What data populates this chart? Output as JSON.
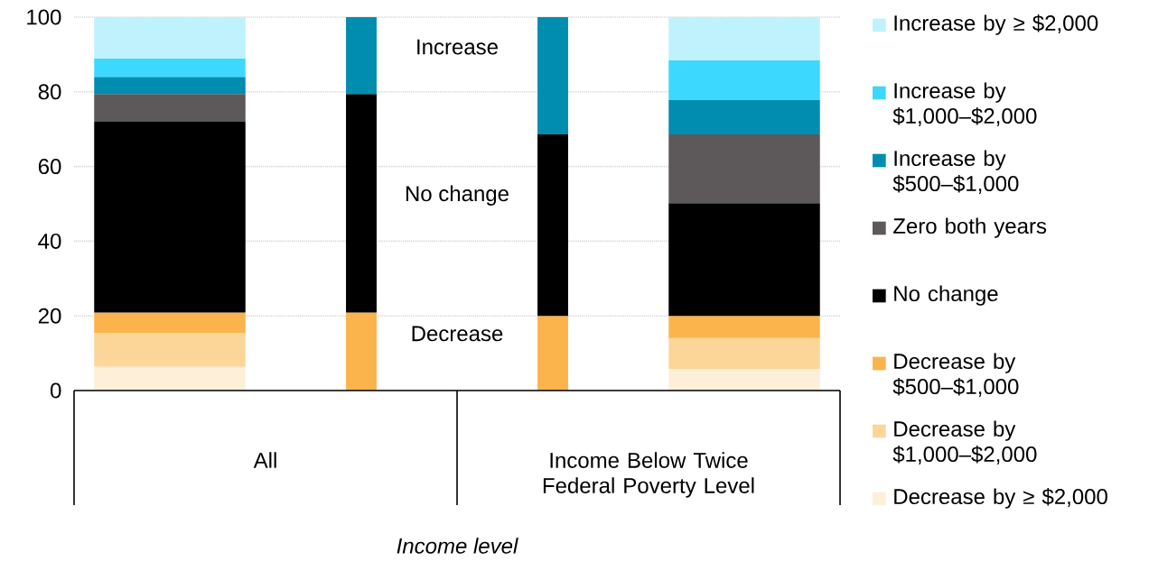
{
  "chart_data": {
    "type": "bar",
    "stacked": true,
    "categories": [
      null,
      null,
      null,
      null
    ],
    "series": [
      {
        "name": "Decrease by ≥ $2,000",
        "color": "#fdefd8",
        "values": [
          6.4,
          null,
          null,
          5.8
        ]
      },
      {
        "name": "Decrease by $1,000–$2,000",
        "color": "#fcd699",
        "values": [
          9.0,
          null,
          null,
          8.3
        ]
      },
      {
        "name": "Decrease by $500–$1,000",
        "color": "#fbb44c",
        "values": [
          5.5,
          null,
          null,
          5.9
        ]
      },
      {
        "name": "No change",
        "color": "#000000",
        "values": [
          51.1,
          null,
          null,
          30.2
        ]
      },
      {
        "name": "Zero both years",
        "color": "#5d5859",
        "values": [
          7.4,
          null,
          null,
          18.4
        ]
      },
      {
        "name": "Increase by $500–$1,000",
        "color": "#008db0",
        "values": [
          4.6,
          null,
          null,
          9.3
        ]
      },
      {
        "name": "Increase by $1,000–$2,000",
        "color": "#3dd8fd",
        "values": [
          4.9,
          null,
          null,
          10.5
        ]
      },
      {
        "name": "Increase by ≥ $2,000",
        "color": "#bff2fd",
        "values": [
          11.1,
          null,
          null,
          11.6
        ]
      },
      {
        "name": "Decrease",
        "color": "#fbb44c",
        "values": [
          null,
          20.9,
          20.0,
          null
        ]
      },
      {
        "name": "No change",
        "color": "#000000",
        "values": [
          null,
          58.5,
          48.6,
          null
        ]
      },
      {
        "name": "Increase",
        "color": "#008db0",
        "values": [
          null,
          20.6,
          31.4,
          null
        ]
      }
    ],
    "ylim": [
      0,
      100
    ],
    "yticks": [
      0,
      20,
      40,
      60,
      80,
      100
    ],
    "grid": "y",
    "legend": "right",
    "annotations": [
      "All",
      "Income Below Twice Federal Poverty Level",
      "Income level"
    ]
  }
}
